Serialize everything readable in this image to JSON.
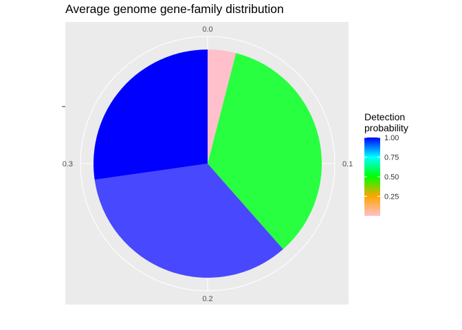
{
  "chart_data": {
    "type": "pie",
    "title": "Average genome gene-family distribution",
    "theta_ticks": [
      "0.0",
      "0.1",
      "0.2",
      "0.3"
    ],
    "theta_tick_values": [
      0.0,
      0.1,
      0.2,
      0.3
    ],
    "total": 0.4,
    "slices": [
      {
        "start": 0.0,
        "value": 0.016,
        "detection_probability": 0.0,
        "color": "#ffc0cb"
      },
      {
        "start": 0.016,
        "value": 0.138,
        "detection_probability": 0.5,
        "color": "#28ff40"
      },
      {
        "start": 0.154,
        "value": 0.137,
        "detection_probability": 0.9,
        "color": "#4848ff"
      },
      {
        "start": 0.291,
        "value": 0.109,
        "detection_probability": 1.0,
        "color": "#0000ff"
      }
    ],
    "legend": {
      "title_lines": [
        "Detection",
        "probability"
      ],
      "ticks": [
        "0.25",
        "0.50",
        "0.75",
        "1.00"
      ],
      "tick_values": [
        0.25,
        0.5,
        0.75,
        1.0
      ],
      "range": [
        0.0,
        1.0
      ],
      "gradient": [
        "#ffc0cb",
        "#ffa500",
        "#00ff00",
        "#00ffff",
        "#0000ff"
      ],
      "placement": "right"
    },
    "panel_background": "#ebebeb",
    "grid_color": "#ffffff"
  }
}
